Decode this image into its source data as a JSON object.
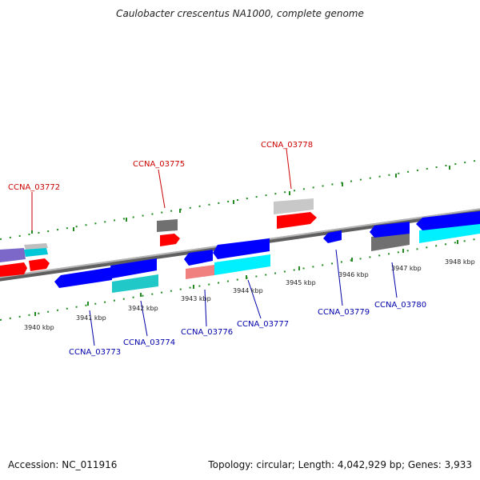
{
  "title": "Caulobacter crescentus NA1000, complete genome",
  "footer": {
    "accession": "Accession: NC_011916",
    "topology": "Topology: circular; Length: 4,042,929 bp; Genes: 3,933"
  },
  "colors": {
    "backbone": "#8c8c8c",
    "forward_label": "#cc0000",
    "reverse_label": "#0000aa",
    "tick": "#228b22"
  },
  "ticks": [
    {
      "label": "3940 kbp"
    },
    {
      "label": "3941 kbp"
    },
    {
      "label": "3942 kbp"
    },
    {
      "label": "3943 kbp"
    },
    {
      "label": "3944 kbp"
    },
    {
      "label": "3945 kbp"
    },
    {
      "label": "3946 kbp"
    },
    {
      "label": "3947 kbp"
    },
    {
      "label": "3948 kbp"
    }
  ],
  "gene_labels": [
    {
      "name": "CCNA_03772",
      "strand": "forward"
    },
    {
      "name": "CCNA_03775",
      "strand": "forward"
    },
    {
      "name": "CCNA_03778",
      "strand": "forward"
    },
    {
      "name": "CCNA_03773",
      "strand": "reverse"
    },
    {
      "name": "CCNA_03774",
      "strand": "reverse"
    },
    {
      "name": "CCNA_03776",
      "strand": "reverse"
    },
    {
      "name": "CCNA_03777",
      "strand": "reverse"
    },
    {
      "name": "CCNA_03779",
      "strand": "reverse"
    },
    {
      "name": "CCNA_03780",
      "strand": "reverse"
    }
  ]
}
